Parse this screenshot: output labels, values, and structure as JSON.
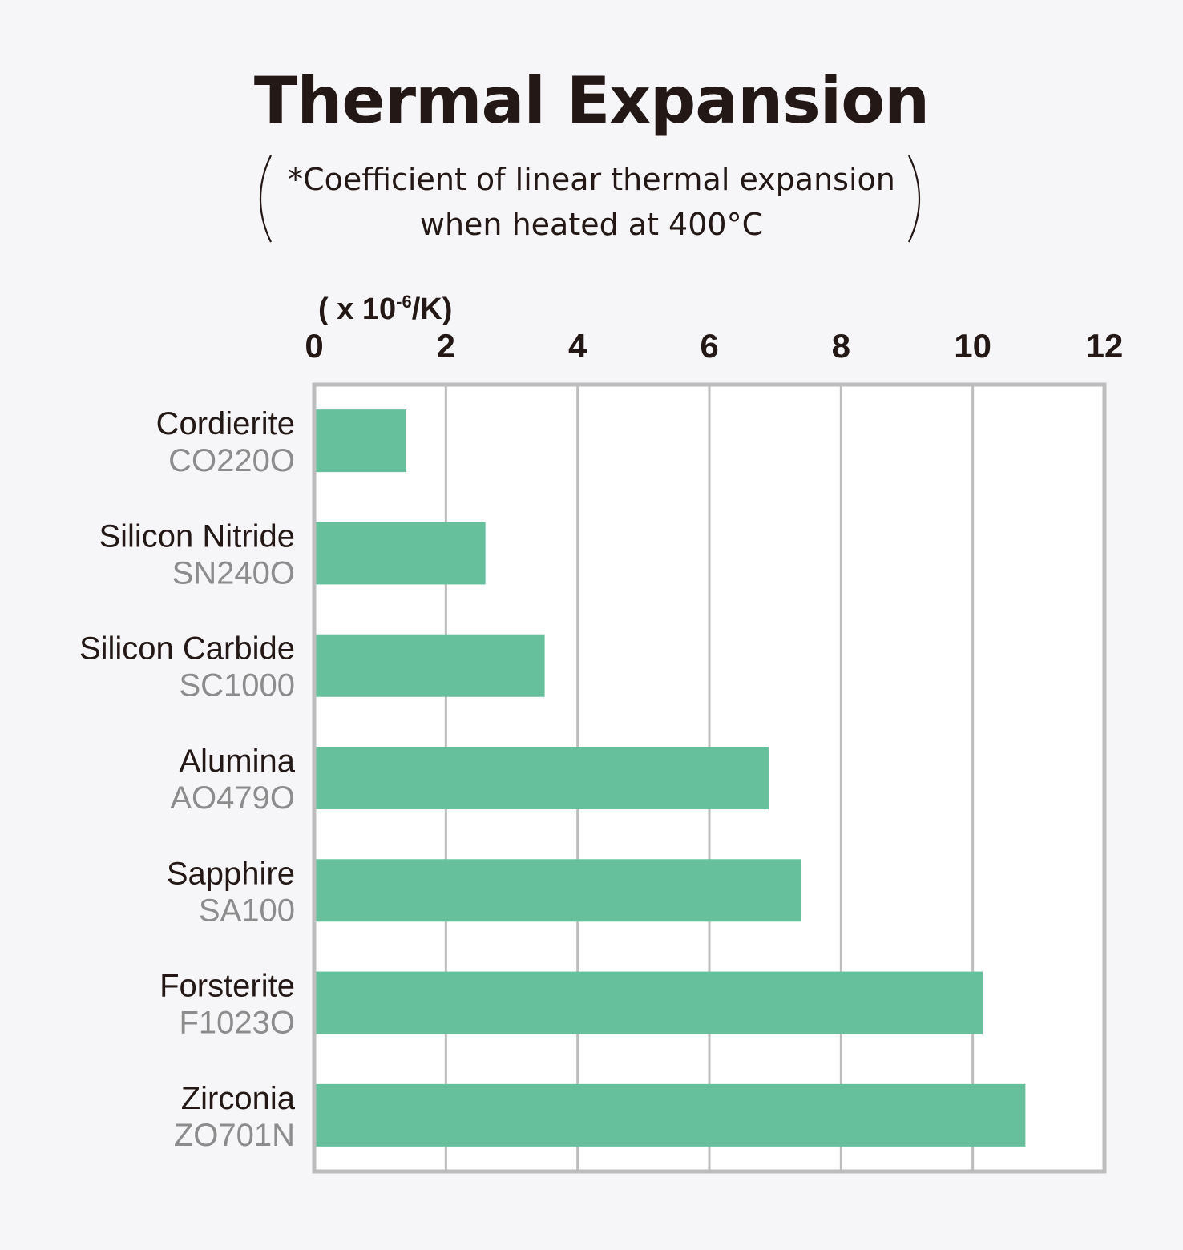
{
  "chart_data": {
    "type": "bar",
    "orientation": "horizontal",
    "title": "Thermal Expansion",
    "subtitle": [
      "*Coefficient of linear thermal expansion",
      "when heated at 400°C"
    ],
    "unit_label": {
      "main": "( x 10",
      "exponent": "-6",
      "suffix": "/K)"
    },
    "categories": [
      {
        "name": "Cordierite",
        "code": "CO220O"
      },
      {
        "name": "Silicon Nitride",
        "code": "SN240O"
      },
      {
        "name": "Silicon Carbide",
        "code": "SC1000"
      },
      {
        "name": "Alumina",
        "code": "AO479O"
      },
      {
        "name": "Sapphire",
        "code": "SA100"
      },
      {
        "name": "Forsterite",
        "code": "F1023O"
      },
      {
        "name": "Zirconia",
        "code": "ZO701N"
      }
    ],
    "values": [
      1.4,
      2.6,
      3.5,
      6.9,
      7.4,
      10.15,
      10.8
    ],
    "xlim": [
      0,
      12
    ],
    "xticks": [
      0,
      2,
      4,
      6,
      8,
      10,
      12
    ],
    "axis_position": "top",
    "grid": true,
    "bar_color": "#66c09c",
    "plot_background": "#ffffff",
    "grid_color": "#bdbdbd"
  }
}
